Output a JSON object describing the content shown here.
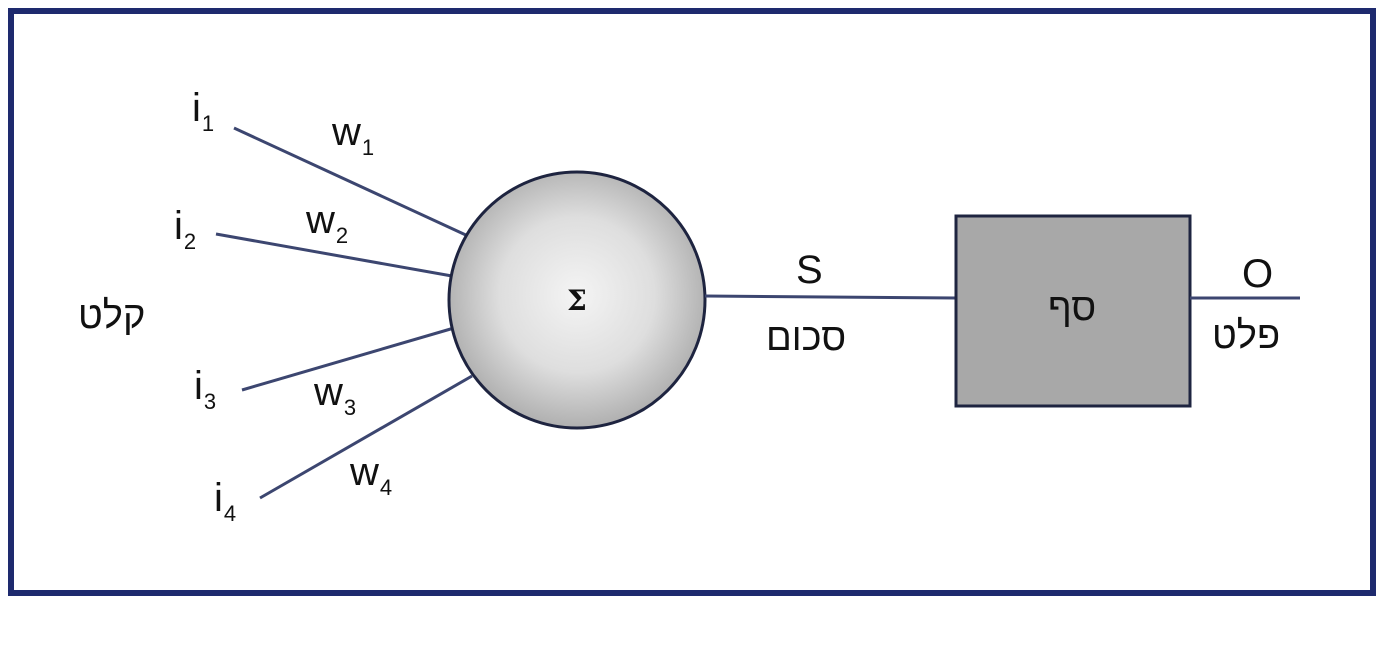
{
  "colors": {
    "frame": "#1e2a6e",
    "line": "#3c4670",
    "neuron_fill": "#d4d4d4",
    "box_fill": "#a8a8a8",
    "box_stroke": "#1e2440"
  },
  "inputs": {
    "label": "קלט",
    "items": [
      {
        "symbol": "i",
        "index": "1",
        "weight_symbol": "w",
        "weight_index": "1"
      },
      {
        "symbol": "i",
        "index": "2",
        "weight_symbol": "w",
        "weight_index": "2"
      },
      {
        "symbol": "i",
        "index": "3",
        "weight_symbol": "w",
        "weight_index": "3"
      },
      {
        "symbol": "i",
        "index": "4",
        "weight_symbol": "w",
        "weight_index": "4"
      }
    ]
  },
  "neuron": {
    "symbol": "Σ"
  },
  "sum": {
    "symbol": "S",
    "label": "סכום"
  },
  "threshold": {
    "label": "סף"
  },
  "output": {
    "symbol": "O",
    "label": "פלט"
  }
}
